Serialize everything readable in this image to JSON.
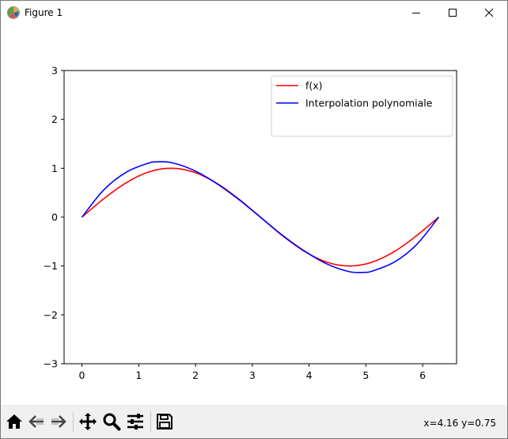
{
  "window": {
    "title": "Figure 1",
    "icon": "matplotlib-icon",
    "controls": [
      "minimize-icon",
      "maximize-icon",
      "close-icon"
    ]
  },
  "toolbar": {
    "buttons": [
      "home-icon",
      "back-icon",
      "forward-icon",
      "pan-icon",
      "zoom-icon",
      "configure-subplots-icon",
      "save-icon"
    ],
    "coords_text": "x=4.16 y=0.75"
  },
  "chart_data": {
    "type": "line",
    "xlim": [
      -0.314,
      6.597
    ],
    "ylim": [
      -3,
      3
    ],
    "xticks": [
      0,
      1,
      2,
      3,
      4,
      5,
      6
    ],
    "yticks": [
      -3,
      -2,
      -1,
      0,
      1,
      2,
      3
    ],
    "ytick_labels": [
      "−3",
      "−2",
      "−1",
      "0",
      "1",
      "2",
      "3"
    ],
    "legend_position": "upper right",
    "grid": false,
    "series": [
      {
        "name": "f(x)",
        "color": "#ff0000",
        "x": [
          0,
          0.393,
          0.785,
          1.178,
          1.571,
          1.963,
          2.356,
          2.749,
          3.142,
          3.534,
          3.927,
          4.32,
          4.712,
          5.105,
          5.498,
          5.89,
          6.283
        ],
        "y": [
          0,
          0.383,
          0.707,
          0.924,
          1.0,
          0.924,
          0.707,
          0.383,
          0,
          -0.383,
          -0.707,
          -0.924,
          -1.0,
          -0.924,
          -0.707,
          -0.383,
          0
        ]
      },
      {
        "name": "Interpolation polynomiale",
        "color": "#0000ff",
        "x": [
          0,
          0.393,
          0.785,
          1.178,
          1.309,
          1.571,
          1.963,
          2.356,
          2.749,
          3.142,
          3.534,
          3.927,
          4.32,
          4.712,
          4.974,
          5.105,
          5.498,
          5.89,
          6.283
        ],
        "y": [
          0,
          0.567,
          0.922,
          1.107,
          1.13,
          1.117,
          0.962,
          0.701,
          0.373,
          0,
          -0.373,
          -0.701,
          -0.962,
          -1.117,
          -1.13,
          -1.107,
          -0.922,
          -0.567,
          0
        ]
      }
    ]
  }
}
